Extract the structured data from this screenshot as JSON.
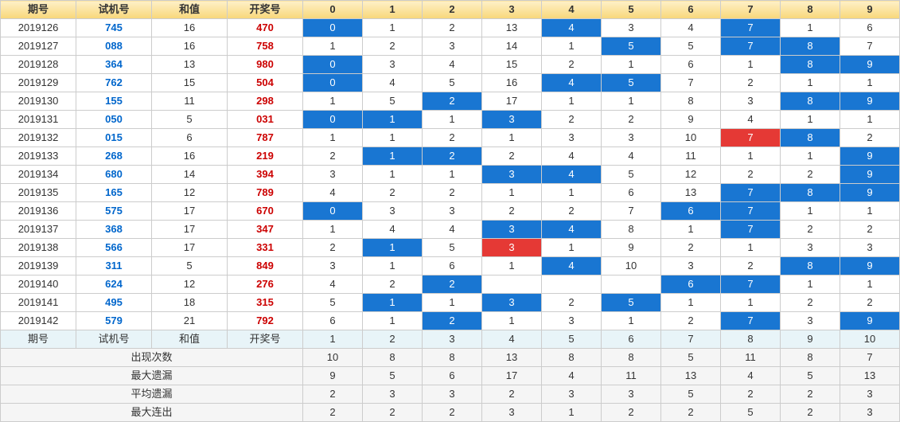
{
  "header": {
    "labels": [
      "期号",
      "试机号",
      "和值",
      "开奖号",
      "0",
      "1",
      "2",
      "3",
      "4",
      "5",
      "6",
      "7",
      "8",
      "9"
    ]
  },
  "colors": {
    "header_gradient_top": "#fef0c8",
    "header_gradient_bottom": "#f8d77a",
    "border": "#cccccc",
    "blue_text": "#0066cc",
    "red_text": "#cc0000",
    "cell_blue": "#1976d2",
    "cell_red": "#e53935",
    "sum_header_bg": "#e8f4f8",
    "sum_row_bg": "#f5f5f5"
  },
  "rows": [
    {
      "period": "2019126",
      "trial": "745",
      "sum": "16",
      "win": "470",
      "cells": [
        {
          "v": "0",
          "c": "blue"
        },
        {
          "v": "1"
        },
        {
          "v": "2"
        },
        {
          "v": "13"
        },
        {
          "v": "4",
          "c": "blue"
        },
        {
          "v": "3"
        },
        {
          "v": "4"
        },
        {
          "v": "7",
          "c": "blue"
        },
        {
          "v": "1"
        },
        {
          "v": "6"
        }
      ]
    },
    {
      "period": "2019127",
      "trial": "088",
      "sum": "16",
      "win": "758",
      "cells": [
        {
          "v": "1"
        },
        {
          "v": "2"
        },
        {
          "v": "3"
        },
        {
          "v": "14"
        },
        {
          "v": "1"
        },
        {
          "v": "5",
          "c": "blue"
        },
        {
          "v": "5"
        },
        {
          "v": "7",
          "c": "blue"
        },
        {
          "v": "8",
          "c": "blue"
        },
        {
          "v": "7"
        }
      ]
    },
    {
      "period": "2019128",
      "trial": "364",
      "sum": "13",
      "win": "980",
      "cells": [
        {
          "v": "0",
          "c": "blue"
        },
        {
          "v": "3"
        },
        {
          "v": "4"
        },
        {
          "v": "15"
        },
        {
          "v": "2"
        },
        {
          "v": "1"
        },
        {
          "v": "6"
        },
        {
          "v": "1"
        },
        {
          "v": "8",
          "c": "blue"
        },
        {
          "v": "9",
          "c": "blue"
        }
      ]
    },
    {
      "period": "2019129",
      "trial": "762",
      "sum": "15",
      "win": "504",
      "cells": [
        {
          "v": "0",
          "c": "blue"
        },
        {
          "v": "4"
        },
        {
          "v": "5"
        },
        {
          "v": "16"
        },
        {
          "v": "4",
          "c": "blue"
        },
        {
          "v": "5",
          "c": "blue"
        },
        {
          "v": "7"
        },
        {
          "v": "2"
        },
        {
          "v": "1"
        },
        {
          "v": "1"
        }
      ]
    },
    {
      "period": "2019130",
      "trial": "155",
      "sum": "11",
      "win": "298",
      "cells": [
        {
          "v": "1"
        },
        {
          "v": "5"
        },
        {
          "v": "2",
          "c": "blue"
        },
        {
          "v": "17"
        },
        {
          "v": "1"
        },
        {
          "v": "1"
        },
        {
          "v": "8"
        },
        {
          "v": "3"
        },
        {
          "v": "8",
          "c": "blue"
        },
        {
          "v": "9",
          "c": "blue"
        }
      ]
    },
    {
      "period": "2019131",
      "trial": "050",
      "sum": "5",
      "win": "031",
      "cells": [
        {
          "v": "0",
          "c": "blue"
        },
        {
          "v": "1",
          "c": "blue"
        },
        {
          "v": "1"
        },
        {
          "v": "3",
          "c": "blue"
        },
        {
          "v": "2"
        },
        {
          "v": "2"
        },
        {
          "v": "9"
        },
        {
          "v": "4"
        },
        {
          "v": "1"
        },
        {
          "v": "1"
        }
      ]
    },
    {
      "period": "2019132",
      "trial": "015",
      "sum": "6",
      "win": "787",
      "cells": [
        {
          "v": "1"
        },
        {
          "v": "1"
        },
        {
          "v": "2"
        },
        {
          "v": "1"
        },
        {
          "v": "3"
        },
        {
          "v": "3"
        },
        {
          "v": "10"
        },
        {
          "v": "7",
          "c": "red"
        },
        {
          "v": "8",
          "c": "blue"
        },
        {
          "v": "2"
        }
      ]
    },
    {
      "period": "2019133",
      "trial": "268",
      "sum": "16",
      "win": "219",
      "cells": [
        {
          "v": "2"
        },
        {
          "v": "1",
          "c": "blue"
        },
        {
          "v": "2",
          "c": "blue"
        },
        {
          "v": "2"
        },
        {
          "v": "4"
        },
        {
          "v": "4"
        },
        {
          "v": "11"
        },
        {
          "v": "1"
        },
        {
          "v": "1"
        },
        {
          "v": "9",
          "c": "blue"
        }
      ]
    },
    {
      "period": "2019134",
      "trial": "680",
      "sum": "14",
      "win": "394",
      "cells": [
        {
          "v": "3"
        },
        {
          "v": "1"
        },
        {
          "v": "1"
        },
        {
          "v": "3",
          "c": "blue"
        },
        {
          "v": "4",
          "c": "blue"
        },
        {
          "v": "5"
        },
        {
          "v": "12"
        },
        {
          "v": "2"
        },
        {
          "v": "2"
        },
        {
          "v": "9",
          "c": "blue"
        }
      ]
    },
    {
      "period": "2019135",
      "trial": "165",
      "sum": "12",
      "win": "789",
      "cells": [
        {
          "v": "4"
        },
        {
          "v": "2"
        },
        {
          "v": "2"
        },
        {
          "v": "1"
        },
        {
          "v": "1"
        },
        {
          "v": "6"
        },
        {
          "v": "13"
        },
        {
          "v": "7",
          "c": "blue"
        },
        {
          "v": "8",
          "c": "blue"
        },
        {
          "v": "9",
          "c": "blue"
        }
      ]
    },
    {
      "period": "2019136",
      "trial": "575",
      "sum": "17",
      "win": "670",
      "cells": [
        {
          "v": "0",
          "c": "blue"
        },
        {
          "v": "3"
        },
        {
          "v": "3"
        },
        {
          "v": "2"
        },
        {
          "v": "2"
        },
        {
          "v": "7"
        },
        {
          "v": "6",
          "c": "blue"
        },
        {
          "v": "7",
          "c": "blue"
        },
        {
          "v": "1"
        },
        {
          "v": "1"
        }
      ]
    },
    {
      "period": "2019137",
      "trial": "368",
      "sum": "17",
      "win": "347",
      "cells": [
        {
          "v": "1"
        },
        {
          "v": "4"
        },
        {
          "v": "4"
        },
        {
          "v": "3",
          "c": "blue"
        },
        {
          "v": "4",
          "c": "blue"
        },
        {
          "v": "8"
        },
        {
          "v": "1"
        },
        {
          "v": "7",
          "c": "blue"
        },
        {
          "v": "2"
        },
        {
          "v": "2"
        }
      ]
    },
    {
      "period": "2019138",
      "trial": "566",
      "sum": "17",
      "win": "331",
      "cells": [
        {
          "v": "2"
        },
        {
          "v": "1",
          "c": "blue"
        },
        {
          "v": "5"
        },
        {
          "v": "3",
          "c": "red"
        },
        {
          "v": "1"
        },
        {
          "v": "9"
        },
        {
          "v": "2"
        },
        {
          "v": "1"
        },
        {
          "v": "3"
        },
        {
          "v": "3"
        }
      ]
    },
    {
      "period": "2019139",
      "trial": "311",
      "sum": "5",
      "win": "849",
      "cells": [
        {
          "v": "3"
        },
        {
          "v": "1"
        },
        {
          "v": "6"
        },
        {
          "v": "1"
        },
        {
          "v": "4",
          "c": "blue"
        },
        {
          "v": "10"
        },
        {
          "v": "3"
        },
        {
          "v": "2"
        },
        {
          "v": "8",
          "c": "blue"
        },
        {
          "v": "9",
          "c": "blue"
        }
      ]
    },
    {
      "period": "2019140",
      "trial": "624",
      "sum": "12",
      "win": "276",
      "cells": [
        {
          "v": "4"
        },
        {
          "v": "2"
        },
        {
          "v": "2",
          "c": "blue"
        },
        {
          "v": ""
        },
        {
          "v": ""
        },
        {
          "v": ""
        },
        {
          "v": "6",
          "c": "blue"
        },
        {
          "v": "7",
          "c": "blue"
        },
        {
          "v": "1"
        },
        {
          "v": "1"
        }
      ]
    },
    {
      "period": "2019141",
      "trial": "495",
      "sum": "18",
      "win": "315",
      "cells": [
        {
          "v": "5"
        },
        {
          "v": "1",
          "c": "blue"
        },
        {
          "v": "1"
        },
        {
          "v": "3",
          "c": "blue"
        },
        {
          "v": "2"
        },
        {
          "v": "5",
          "c": "blue"
        },
        {
          "v": "1"
        },
        {
          "v": "1"
        },
        {
          "v": "2"
        },
        {
          "v": "2"
        }
      ]
    },
    {
      "period": "2019142",
      "trial": "579",
      "sum": "21",
      "win": "792",
      "cells": [
        {
          "v": "6"
        },
        {
          "v": "1"
        },
        {
          "v": "2",
          "c": "blue"
        },
        {
          "v": "1"
        },
        {
          "v": "3"
        },
        {
          "v": "1"
        },
        {
          "v": "2"
        },
        {
          "v": "7",
          "c": "blue"
        },
        {
          "v": "3"
        },
        {
          "v": "9",
          "c": "blue"
        }
      ]
    }
  ],
  "summary_header": {
    "labels": [
      "期号",
      "试机号",
      "和值",
      "开奖号",
      "1",
      "2",
      "3",
      "4",
      "5",
      "6",
      "7",
      "8",
      "9",
      "10"
    ]
  },
  "summary": [
    {
      "label": "出现次数",
      "vals": [
        "10",
        "8",
        "8",
        "13",
        "8",
        "8",
        "5",
        "11",
        "8",
        "7"
      ]
    },
    {
      "label": "最大遗漏",
      "vals": [
        "9",
        "5",
        "6",
        "17",
        "4",
        "11",
        "13",
        "4",
        "5",
        "13"
      ]
    },
    {
      "label": "平均遗漏",
      "vals": [
        "2",
        "3",
        "3",
        "2",
        "3",
        "3",
        "5",
        "2",
        "2",
        "3"
      ]
    },
    {
      "label": "最大连出",
      "vals": [
        "2",
        "2",
        "2",
        "3",
        "1",
        "2",
        "2",
        "5",
        "2",
        "3"
      ]
    }
  ]
}
